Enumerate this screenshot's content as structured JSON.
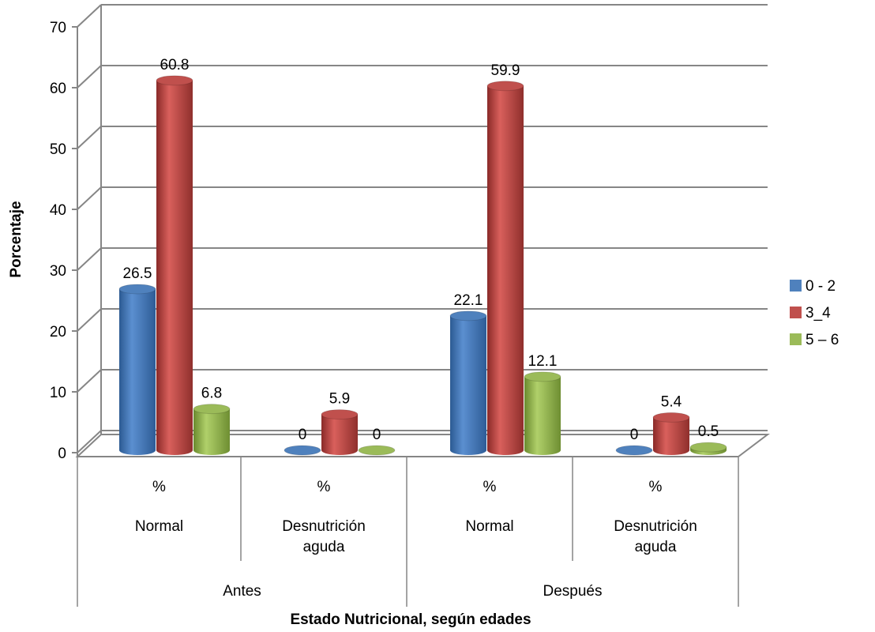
{
  "chart_data": {
    "type": "bar",
    "title": "",
    "ylabel": "Porcentaje",
    "xlabel": "Estado Nutricional, según edades",
    "ylim": [
      0,
      70
    ],
    "yticks": [
      "0",
      "10",
      "20",
      "30",
      "40",
      "50",
      "60",
      "70"
    ],
    "grid": true,
    "legend_position": "right",
    "categories": [
      {
        "unit": "%",
        "label": "Normal",
        "group": "Antes"
      },
      {
        "unit": "%",
        "label": "Desnutrición aguda",
        "group": "Antes"
      },
      {
        "unit": "%",
        "label": "Normal",
        "group": "Después"
      },
      {
        "unit": "%",
        "label": "Desnutrición aguda",
        "group": "Después"
      }
    ],
    "groups": [
      "Antes",
      "Después"
    ],
    "series": [
      {
        "name": "0 - 2",
        "color": "#4F81BD",
        "values": [
          26.5,
          0,
          22.1,
          0
        ],
        "labels": [
          "26.5",
          "0",
          "22.1",
          "0"
        ]
      },
      {
        "name": "3_4",
        "color": "#C0504D",
        "values": [
          60.8,
          5.9,
          59.9,
          5.4
        ],
        "labels": [
          "60.8",
          "5.9",
          "59.9",
          "5.4"
        ]
      },
      {
        "name": "5 – 6",
        "color": "#9BBB59",
        "values": [
          6.8,
          0,
          12.1,
          0.5
        ],
        "labels": [
          "6.8",
          "0",
          "12.1",
          "0.5"
        ]
      }
    ]
  }
}
